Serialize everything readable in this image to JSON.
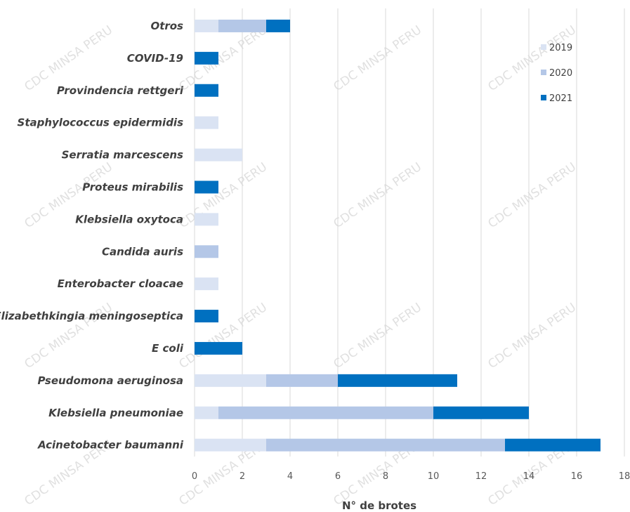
{
  "chart_data": {
    "type": "bar",
    "orientation": "horizontal",
    "stacked": true,
    "categories": [
      "Otros",
      "COVID-19",
      "Provindencia rettgeri",
      "Staphylococcus epidermidis",
      "Serratia marcescens",
      "Proteus mirabilis",
      "Klebsiella oxytoca",
      "Candida auris",
      "Enterobacter cloacae",
      "Elizabethkingia meningoseptica",
      "E coli",
      "Pseudomona aeruginosa",
      "Klebsiella pneumoniae",
      "Acinetobacter baumanni"
    ],
    "series": [
      {
        "name": "2019",
        "color": "#dae3f3",
        "values": [
          1,
          0,
          0,
          1,
          2,
          0,
          1,
          0,
          1,
          0,
          0,
          3,
          1,
          3
        ]
      },
      {
        "name": "2020",
        "color": "#b4c7e7",
        "values": [
          2,
          0,
          0,
          0,
          0,
          0,
          0,
          1,
          0,
          0,
          0,
          3,
          9,
          10
        ]
      },
      {
        "name": "2021",
        "color": "#0070c0",
        "values": [
          1,
          1,
          1,
          0,
          0,
          1,
          0,
          0,
          0,
          1,
          2,
          5,
          4,
          4
        ]
      }
    ],
    "xlabel": "N° de brotes",
    "xlim": [
      0,
      18
    ],
    "xticks": [
      "0",
      "2",
      "4",
      "6",
      "8",
      "10",
      "12",
      "14",
      "16",
      "18"
    ],
    "grid": "vertical",
    "legend_position": "top-right"
  },
  "watermark": "CDC MINSA PERU"
}
